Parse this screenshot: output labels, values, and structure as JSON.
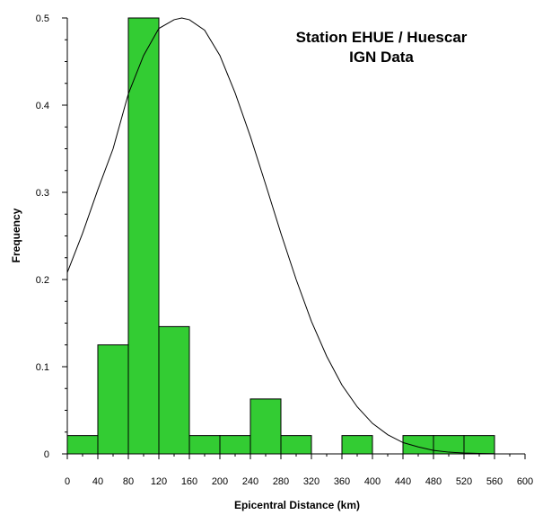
{
  "chart_data": {
    "type": "bar",
    "subtype": "histogram",
    "title_lines": [
      "Station EHUE / Huescar",
      "IGN Data"
    ],
    "xlabel": "Epicentral Distance (km)",
    "ylabel": "Frequency",
    "xlim": [
      0,
      600
    ],
    "ylim": [
      0,
      0.5
    ],
    "xticks": [
      0,
      40,
      80,
      120,
      160,
      200,
      240,
      280,
      320,
      360,
      400,
      440,
      480,
      520,
      560,
      600
    ],
    "yticks": [
      0,
      0.1,
      0.2,
      0.3,
      0.4,
      0.5
    ],
    "ytick_labels": [
      "0",
      "0.1",
      "0.2",
      "0.3",
      "0.4",
      "0.5"
    ],
    "bin_width": 40,
    "bins": [
      {
        "x0": 0,
        "x1": 40,
        "value": 0.021
      },
      {
        "x0": 40,
        "x1": 80,
        "value": 0.125
      },
      {
        "x0": 80,
        "x1": 120,
        "value": 0.5
      },
      {
        "x0": 120,
        "x1": 160,
        "value": 0.146
      },
      {
        "x0": 160,
        "x1": 200,
        "value": 0.021
      },
      {
        "x0": 200,
        "x1": 240,
        "value": 0.021
      },
      {
        "x0": 240,
        "x1": 280,
        "value": 0.063
      },
      {
        "x0": 280,
        "x1": 320,
        "value": 0.021
      },
      {
        "x0": 360,
        "x1": 400,
        "value": 0.021
      },
      {
        "x0": 440,
        "x1": 480,
        "value": 0.021
      },
      {
        "x0": 480,
        "x1": 520,
        "value": 0.021
      },
      {
        "x0": 520,
        "x1": 560,
        "value": 0.021
      }
    ],
    "fit_curve": {
      "type": "normal",
      "peak_x": 150,
      "peak_y": 0.5,
      "points": [
        [
          0,
          0.208
        ],
        [
          20,
          0.253
        ],
        [
          40,
          0.303
        ],
        [
          60,
          0.35
        ],
        [
          80,
          0.413
        ],
        [
          100,
          0.457
        ],
        [
          120,
          0.488
        ],
        [
          140,
          0.498
        ],
        [
          150,
          0.5
        ],
        [
          160,
          0.498
        ],
        [
          180,
          0.486
        ],
        [
          200,
          0.457
        ],
        [
          220,
          0.414
        ],
        [
          240,
          0.364
        ],
        [
          260,
          0.309
        ],
        [
          280,
          0.253
        ],
        [
          300,
          0.2
        ],
        [
          320,
          0.152
        ],
        [
          340,
          0.112
        ],
        [
          360,
          0.079
        ],
        [
          380,
          0.054
        ],
        [
          400,
          0.035
        ],
        [
          420,
          0.022
        ],
        [
          440,
          0.013
        ],
        [
          460,
          0.008
        ],
        [
          480,
          0.004
        ],
        [
          500,
          0.002
        ],
        [
          520,
          0.001
        ],
        [
          540,
          0.0005
        ],
        [
          560,
          0.0002
        ]
      ]
    },
    "bar_color": "#33cc33",
    "bar_edge_color": "#000000",
    "curve_color": "#000000",
    "grid": false,
    "legend": "none"
  }
}
